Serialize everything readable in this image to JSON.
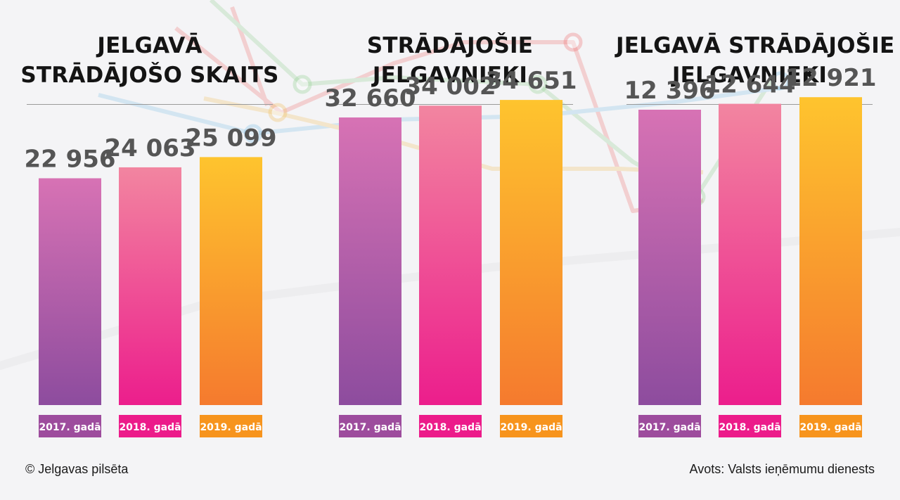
{
  "charts": [
    {
      "title_lines": [
        "JELGAVĀ",
        "STRĀDĀJOŠO SKAITS"
      ]
    },
    {
      "title_lines": [
        "STRĀDĀJOŠIE",
        "JELGAVNIEKI"
      ]
    },
    {
      "title_lines": [
        "JELGAVĀ STRĀDĀJOŠIE",
        "JELGAVNIEKI"
      ]
    }
  ],
  "chart_data": [
    {
      "type": "bar",
      "title": "JELGAVĀ STRĀDĀJOŠO SKAITS",
      "categories": [
        "2017. gadā",
        "2018. gadā",
        "2019. gadā"
      ],
      "values": [
        22956,
        24063,
        25099
      ],
      "value_labels": [
        "22 956",
        "24 063",
        "25 099"
      ]
    },
    {
      "type": "bar",
      "title": "STRĀDĀJOŠIE JELGAVNIEKI",
      "categories": [
        "2017. gadā",
        "2018. gadā",
        "2019. gadā"
      ],
      "values": [
        32660,
        34002,
        34651
      ],
      "value_labels": [
        "32 660",
        "34 002",
        "34 651"
      ]
    },
    {
      "type": "bar",
      "title": "JELGAVĀ STRĀDĀJOŠIE JELGAVNIEKI",
      "categories": [
        "2017. gadā",
        "2018. gadā",
        "2019. gadā"
      ],
      "values": [
        12396,
        12644,
        12921
      ],
      "value_labels": [
        "12 396",
        "12 644",
        "12 921"
      ]
    }
  ],
  "colors": {
    "bar_2017": [
      "#d772b4",
      "#8d4c9e"
    ],
    "bar_2018": [
      "#f285a0",
      "#ec1e8c"
    ],
    "bar_2019": [
      "#fec42e",
      "#f57a2e"
    ],
    "label_2017": "#9d4c9d",
    "label_2018": "#ec1b8a",
    "label_2019": "#f7941d",
    "value_text": "#555555"
  },
  "footer": {
    "copyright": "© Jelgavas pilsēta",
    "source": "Avots: Valsts ieņēmumu dienests"
  }
}
